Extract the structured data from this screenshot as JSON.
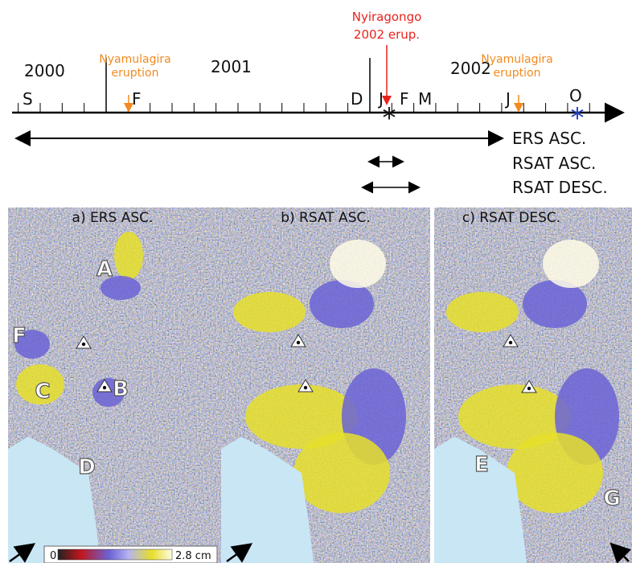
{
  "timeline": {
    "years": [
      "2000",
      "2001",
      "2002"
    ],
    "months": [
      "S",
      "F",
      "D",
      "J",
      "F",
      "M",
      "J",
      "O"
    ],
    "events": {
      "nyamulagira": [
        "Nyamulagira",
        "eruption"
      ],
      "nyiragongo": [
        "Nyiragongo",
        "2002 erup."
      ]
    },
    "tracks": [
      "ERS ASC.",
      "RSAT ASC.",
      "RSAT DESC."
    ]
  },
  "panels": [
    {
      "title": "a) ERS ASC.",
      "letters": [
        "A",
        "B",
        "C",
        "D",
        "F"
      ]
    },
    {
      "title": "b) RSAT ASC."
    },
    {
      "title": "c) RSAT DESC.",
      "letters": [
        "E",
        "G"
      ]
    }
  ],
  "colorbar": {
    "min": "0",
    "max": "2.8 cm"
  }
}
